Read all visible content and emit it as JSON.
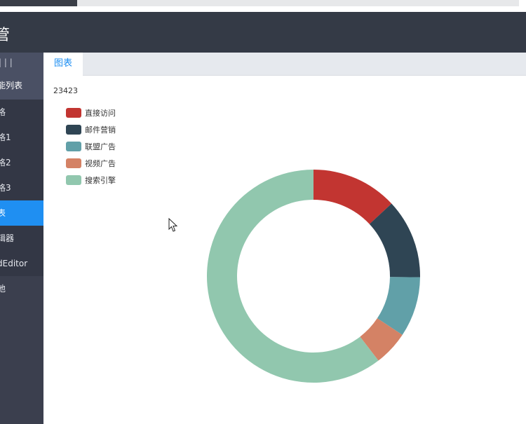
{
  "header": {
    "title": "管"
  },
  "sidebar": {
    "toggle_label": "| | |",
    "group_label": "能列表",
    "items": [
      {
        "label": "格"
      },
      {
        "label": "格1"
      },
      {
        "label": "格2"
      },
      {
        "label": "格3"
      },
      {
        "label": "表"
      },
      {
        "label": "辑器"
      },
      {
        "label": "dEditor"
      },
      {
        "label": "他"
      }
    ],
    "active_index": 4
  },
  "tabs": [
    {
      "label": "图表"
    }
  ],
  "page": {
    "number": "23423"
  },
  "chart_data": {
    "type": "pie",
    "donut": true,
    "categories": [
      "直接访问",
      "邮件营销",
      "联盟广告",
      "视频广告",
      "搜索引擎"
    ],
    "values": [
      335,
      310,
      234,
      135,
      1548
    ],
    "colors": [
      "#c23531",
      "#2f4554",
      "#61a0a8",
      "#d48265",
      "#91c7ae"
    ],
    "legend_position": "top-left"
  }
}
